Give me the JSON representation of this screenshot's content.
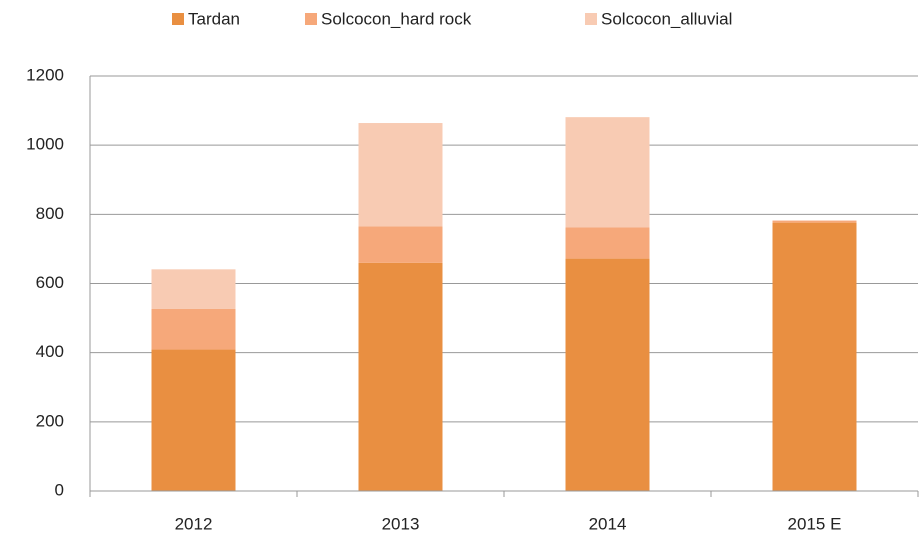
{
  "chart_data": {
    "type": "stacked_bar",
    "categories": [
      "2012",
      "2013",
      "2014",
      "2015 E"
    ],
    "series": [
      {
        "name": "Tardan",
        "color": "#e98f41",
        "values": [
          409,
          660,
          672,
          776
        ]
      },
      {
        "name": "Solcocon_hard rock",
        "color": "#f6a87a",
        "values": [
          118,
          105,
          90,
          6
        ]
      },
      {
        "name": "Solcocon_alluvial",
        "color": "#f8cbb3",
        "values": [
          114,
          299,
          319,
          0
        ]
      }
    ],
    "ylim": [
      0,
      1200
    ],
    "yticks": [
      0,
      200,
      400,
      600,
      800,
      1000,
      1200
    ],
    "grid": true,
    "legend": "top"
  }
}
